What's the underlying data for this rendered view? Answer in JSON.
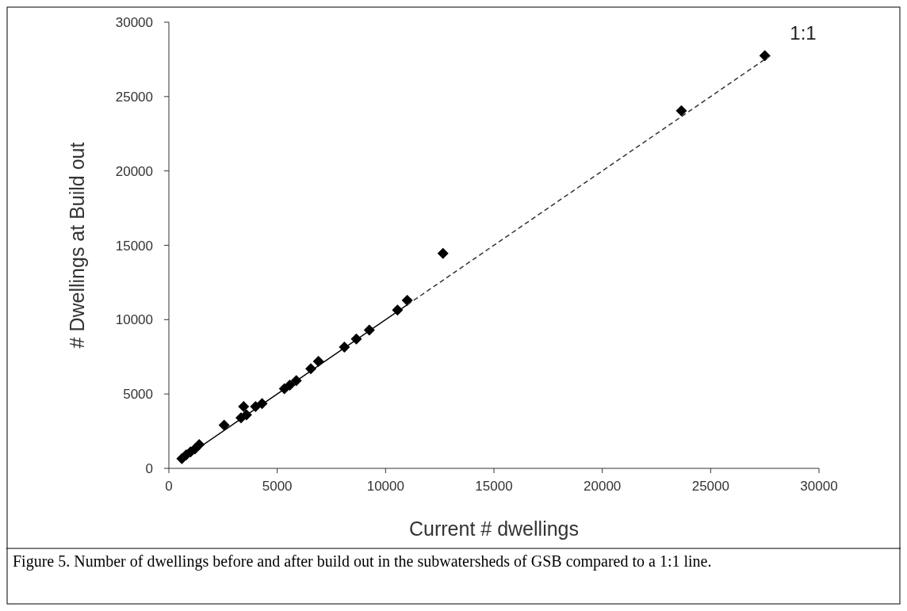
{
  "chart_data": {
    "type": "scatter",
    "xlabel": "Current # dwellings",
    "ylabel": "# Dwellings at Build out",
    "xlim": [
      0,
      30000
    ],
    "ylim": [
      0,
      30000
    ],
    "xticks": [
      0,
      5000,
      10000,
      15000,
      20000,
      25000,
      30000
    ],
    "yticks": [
      0,
      5000,
      10000,
      15000,
      20000,
      25000,
      30000
    ],
    "grid": false,
    "marker": "diamond",
    "series": [
      {
        "color": "#000000",
        "x": [
          600,
          800,
          1000,
          1200,
          1400,
          2550,
          3330,
          3450,
          3580,
          4000,
          4300,
          5330,
          5580,
          5880,
          6550,
          6900,
          8100,
          8650,
          9250,
          10550,
          11000,
          12650,
          23650,
          27500
        ],
        "values": [
          650,
          900,
          1100,
          1300,
          1600,
          2900,
          3400,
          4150,
          3600,
          4150,
          4350,
          5350,
          5600,
          5900,
          6700,
          7200,
          8150,
          8700,
          9300,
          10650,
          11300,
          14450,
          24050,
          27750
        ]
      },
      {
        "type": "line",
        "color": "#000000",
        "line_style": "solid",
        "marker": "none",
        "x": [
          600,
          11000
        ],
        "values": [
          600,
          11000
        ]
      },
      {
        "type": "line",
        "color": "#333333",
        "line_style": "dashed",
        "marker": "none",
        "x": [
          11000,
          27750
        ],
        "values": [
          11000,
          27750
        ]
      }
    ],
    "annotations": [
      "1:1",
      "Figure 5. Number of dwellings before and after build out in the subwatersheds of GSB compared to a 1:1 line."
    ]
  }
}
